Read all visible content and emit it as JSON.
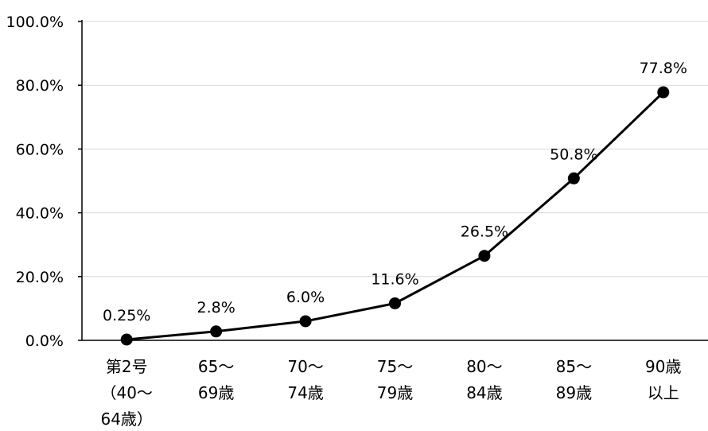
{
  "chart_data": {
    "type": "line",
    "title": "",
    "xlabel": "",
    "ylabel": "",
    "ylim": [
      0,
      100
    ],
    "yticks": [
      0,
      20,
      40,
      60,
      80,
      100
    ],
    "ytick_labels": [
      "0.0%",
      "20.0%",
      "40.0%",
      "60.0%",
      "80.0%",
      "100.0%"
    ],
    "grid": true,
    "legend": "none",
    "categories": [
      [
        "第2号",
        "（40～",
        "64歳）"
      ],
      [
        "65～",
        "69歳"
      ],
      [
        "70～",
        "74歳"
      ],
      [
        "75～",
        "79歳"
      ],
      [
        "80～",
        "84歳"
      ],
      [
        "85～",
        "89歳"
      ],
      [
        "90歳",
        "以上"
      ]
    ],
    "values": [
      0.25,
      2.8,
      6.0,
      11.6,
      26.5,
      50.8,
      77.8
    ],
    "data_labels": [
      "0.25%",
      "2.8%",
      "6.0%",
      "11.6%",
      "26.5%",
      "50.8%",
      "77.8%"
    ],
    "colors": {
      "line": "#000000",
      "marker": "#000000",
      "grid": "#d9d9d9",
      "axis": "#000000"
    }
  }
}
